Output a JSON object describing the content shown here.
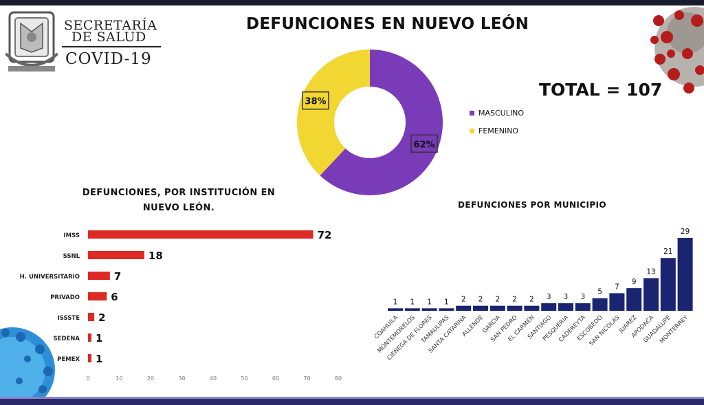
{
  "header": {
    "org_line1": "SECRETARÍA",
    "org_line2": "DE SALUD",
    "org_line3": "COVID-19",
    "title": "DEFUNCIONES EN NUEVO LEÓN",
    "total": "TOTAL = 107"
  },
  "icons": {
    "logo": "coat-of-arms-seal",
    "virus_top_right": "coronavirus-image",
    "virus_bottom_left": "virus-image"
  },
  "colors": {
    "masculino": "#7a3bb8",
    "femenino": "#f2d631",
    "institution_bar": "#dd2a24",
    "municipio_bar": "#1a2470"
  },
  "chart_data": [
    {
      "type": "pie",
      "donut": true,
      "title": "",
      "slices": [
        {
          "name": "MASCULINO",
          "value": 62,
          "label": "62%"
        },
        {
          "name": "FEMENINO",
          "value": 38,
          "label": "38%"
        }
      ],
      "legend": "right"
    },
    {
      "type": "bar",
      "orientation": "horizontal",
      "title": "DEFUNCIONES, POR INSTITUCIÓN EN NUEVO LEÓN.",
      "categories": [
        "IMSS",
        "SSNL",
        "H. UNIVERSITARIO",
        "PRIVADO",
        "ISSSTE",
        "SEDENA",
        "PEMEX"
      ],
      "values": [
        72,
        18,
        7,
        6,
        2,
        1,
        1
      ],
      "xlim": [
        0,
        80
      ],
      "xticks": [
        "0",
        "10",
        "20",
        "30",
        "40",
        "50",
        "60",
        "70",
        "80"
      ],
      "grid": false
    },
    {
      "type": "bar",
      "orientation": "vertical",
      "title": "DEFUNCIONES POR MUNICIPIO",
      "categories": [
        "COAHUILA",
        "MONTEMORELOS",
        "CIENEGA DE FLORES",
        "TAMAULIPAS",
        "SANTA CATARINA",
        "ALLENDE",
        "GARCIA",
        "SAN PEDRO",
        "EL CARMEN",
        "SANTIAGO",
        "PESQUERIA",
        "CADEREYTA",
        "ESCOBEDO",
        "SAN NICOLAS",
        "JUAREZ",
        "APODACA",
        "GUADALUPE",
        "MONTERREY"
      ],
      "values": [
        1,
        1,
        1,
        1,
        2,
        2,
        2,
        2,
        2,
        3,
        3,
        3,
        5,
        7,
        9,
        13,
        21,
        29
      ],
      "ylim": [
        0,
        29
      ],
      "grid": false
    }
  ]
}
